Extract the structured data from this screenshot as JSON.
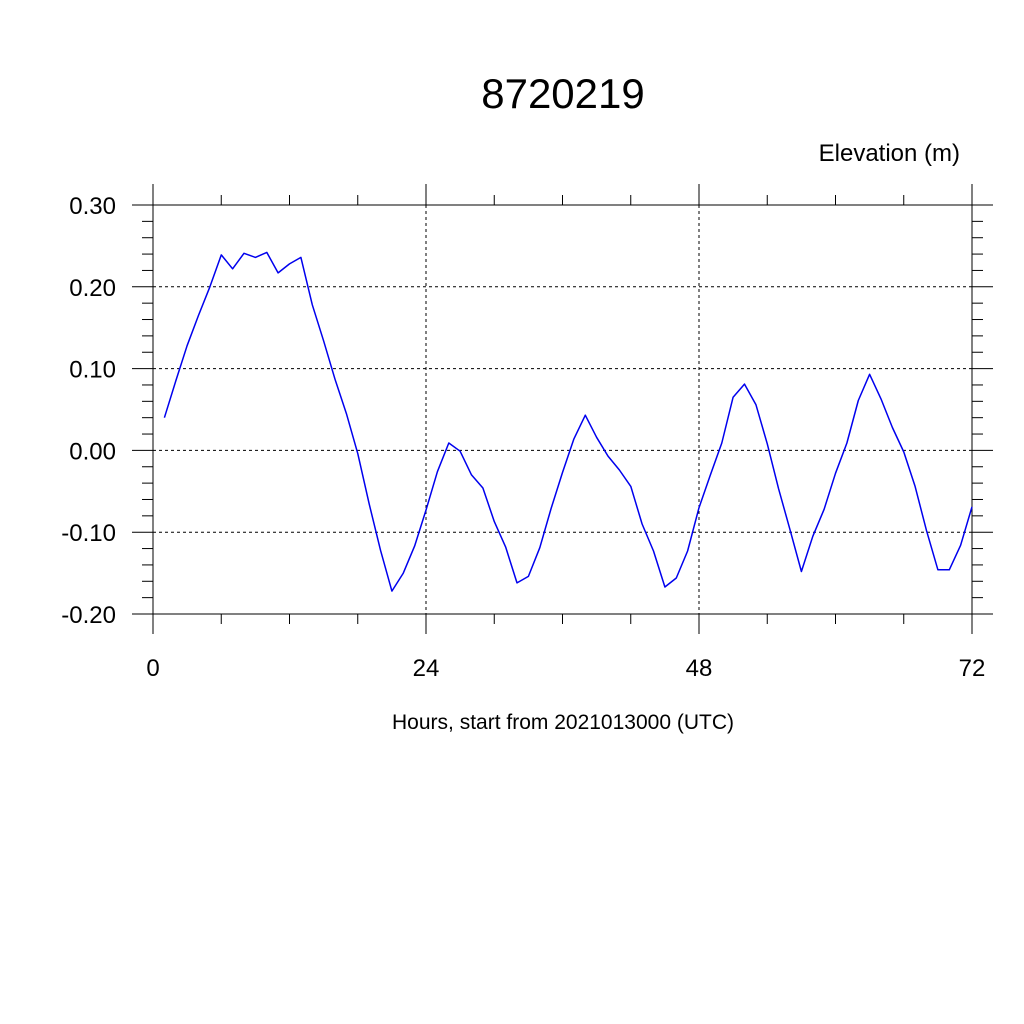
{
  "chart_data": {
    "type": "line",
    "title": "8720219",
    "subtitle": "Elevation (m)",
    "xlabel": "Hours, start from 2021013000 (UTC)",
    "ylabel": "",
    "xlim": [
      0,
      72
    ],
    "ylim": [
      -0.2,
      0.3
    ],
    "x_ticks": [
      0,
      24,
      48,
      72
    ],
    "x_tick_labels": [
      "0",
      "24",
      "48",
      "72"
    ],
    "y_ticks": [
      -0.2,
      -0.1,
      0.0,
      0.1,
      0.2,
      0.3
    ],
    "y_tick_labels": [
      "-0.20",
      "-0.10",
      "0.00",
      "0.10",
      "0.20",
      "0.30"
    ],
    "grid": true,
    "line_color": "#0000ee",
    "series": [
      {
        "x": [
          1,
          2,
          3,
          4,
          5,
          6,
          7,
          8,
          9,
          10,
          11,
          12,
          13,
          14,
          15,
          16,
          17,
          18,
          19,
          20,
          21,
          22,
          23,
          24,
          25,
          26,
          27,
          28,
          29,
          30,
          31,
          32,
          33,
          34,
          35,
          36,
          37,
          38,
          39,
          40,
          41,
          42,
          43,
          44,
          45,
          46,
          47,
          48,
          49,
          50,
          51,
          52,
          53,
          54,
          55,
          56,
          57,
          58,
          59,
          60,
          61,
          62,
          63,
          64,
          65,
          66,
          67,
          68,
          69,
          70,
          71,
          72
        ],
        "values": [
          0.04,
          0.085,
          0.128,
          0.165,
          0.2,
          0.239,
          0.222,
          0.241,
          0.236,
          0.242,
          0.217,
          0.228,
          0.236,
          0.178,
          0.134,
          0.087,
          0.045,
          -0.004,
          -0.065,
          -0.122,
          -0.172,
          -0.15,
          -0.117,
          -0.073,
          -0.026,
          0.009,
          -0.001,
          -0.03,
          -0.046,
          -0.087,
          -0.118,
          -0.162,
          -0.154,
          -0.119,
          -0.071,
          -0.027,
          0.014,
          0.043,
          0.016,
          -0.007,
          -0.024,
          -0.044,
          -0.09,
          -0.123,
          -0.167,
          -0.156,
          -0.123,
          -0.07,
          -0.03,
          0.009,
          0.065,
          0.081,
          0.056,
          0.008,
          -0.047,
          -0.097,
          -0.148,
          -0.105,
          -0.072,
          -0.028,
          0.009,
          0.061,
          0.093,
          0.063,
          0.028,
          -0.002,
          -0.044,
          -0.098,
          -0.146,
          -0.146,
          -0.116,
          -0.069
        ]
      }
    ]
  }
}
